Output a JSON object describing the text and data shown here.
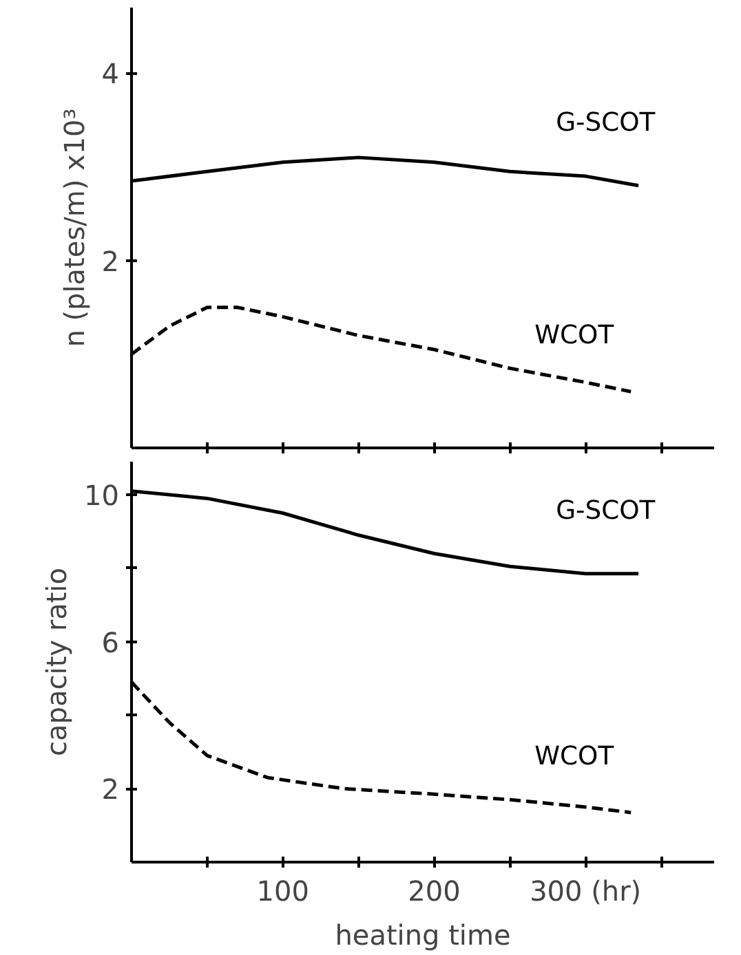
{
  "chart_data": [
    {
      "type": "line",
      "ylabel": "n (plates/m) x10³",
      "xlim": [
        0,
        385
      ],
      "ylim": [
        0,
        4.7
      ],
      "xticks": [
        {
          "value": 50,
          "label": null
        },
        {
          "value": 100,
          "label": null
        },
        {
          "value": 150,
          "label": null
        },
        {
          "value": 200,
          "label": null
        },
        {
          "value": 250,
          "label": null
        },
        {
          "value": 300,
          "label": null
        },
        {
          "value": 350,
          "label": null
        }
      ],
      "yticks": [
        2,
        4
      ],
      "tick_labels": "y",
      "grid": false,
      "series": [
        {
          "name": "G-SCOT",
          "color": "#000000",
          "line_style": "solid",
          "x": [
            0,
            50,
            100,
            150,
            200,
            250,
            300,
            335
          ],
          "values": [
            2.85,
            2.95,
            3.05,
            3.1,
            3.05,
            2.95,
            2.9,
            2.8
          ]
        },
        {
          "name": "WCOT",
          "color": "#000000",
          "line_style": "dashed",
          "x": [
            0,
            25,
            50,
            70,
            100,
            150,
            200,
            250,
            300,
            330
          ],
          "values": [
            1.0,
            1.3,
            1.5,
            1.5,
            1.4,
            1.2,
            1.05,
            0.85,
            0.7,
            0.6
          ]
        }
      ]
    },
    {
      "type": "line",
      "xlabel": "heating time",
      "ylabel": "capacity ratio",
      "xlim": [
        0,
        385
      ],
      "ylim": [
        0,
        10.9
      ],
      "xticks": [
        {
          "value": 50,
          "label": null
        },
        100,
        {
          "value": 150,
          "label": null
        },
        200,
        {
          "value": 250,
          "label": null
        },
        {
          "value": 300,
          "label": "300 (hr)"
        },
        {
          "value": 350,
          "label": null
        }
      ],
      "yticks": [
        2,
        {
          "value": 4,
          "label": null
        },
        6,
        {
          "value": 8,
          "label": null
        },
        10
      ],
      "grid": false,
      "series": [
        {
          "name": "G-SCOT",
          "color": "#000000",
          "line_style": "solid",
          "x": [
            0,
            50,
            100,
            150,
            200,
            250,
            300,
            335
          ],
          "values": [
            10.1,
            9.9,
            9.5,
            8.9,
            8.4,
            8.05,
            7.85,
            7.85
          ]
        },
        {
          "name": "WCOT",
          "color": "#000000",
          "line_style": "dashed",
          "x": [
            0,
            25,
            50,
            90,
            140,
            200,
            250,
            300,
            330
          ],
          "values": [
            4.9,
            3.8,
            2.9,
            2.3,
            2.0,
            1.85,
            1.7,
            1.5,
            1.35
          ]
        }
      ]
    }
  ]
}
